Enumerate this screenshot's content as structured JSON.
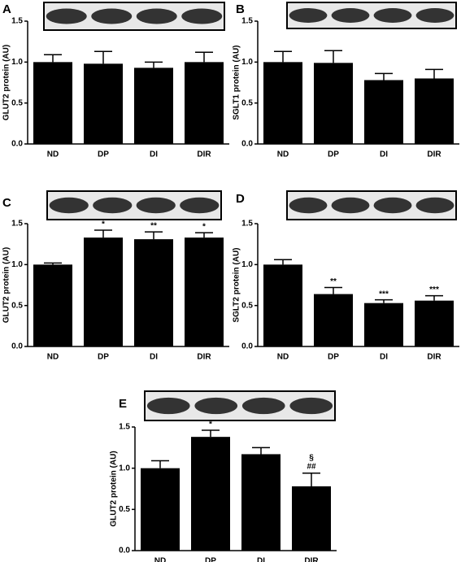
{
  "chart_data": [
    {
      "type": "bar",
      "label": "A",
      "ylabel": "GLUT2 protein (AU)",
      "categories": [
        "ND",
        "DP",
        "DI",
        "DIR"
      ],
      "values": [
        1.0,
        0.98,
        0.93,
        1.0
      ],
      "errors": [
        0.09,
        0.15,
        0.07,
        0.12
      ],
      "annotations": [
        null,
        null,
        null,
        null
      ],
      "color": "#000000",
      "ylim": [
        0,
        1.5
      ],
      "yticks": [
        {
          "value": 0,
          "label": "0.0"
        },
        {
          "value": 0.5,
          "label": "0.5"
        },
        {
          "value": 1,
          "label": "1.0"
        },
        {
          "value": 1.5,
          "label": "1.5"
        }
      ]
    },
    {
      "type": "bar",
      "label": "B",
      "ylabel": "SGLT1 protein (AU)",
      "categories": [
        "ND",
        "DP",
        "DI",
        "DIR"
      ],
      "values": [
        1.0,
        0.99,
        0.78,
        0.8
      ],
      "errors": [
        0.13,
        0.15,
        0.08,
        0.11
      ],
      "annotations": [
        null,
        null,
        null,
        null
      ],
      "color": "#000000",
      "ylim": [
        0,
        1.5
      ],
      "yticks": [
        {
          "value": 0,
          "label": "0.0"
        },
        {
          "value": 0.5,
          "label": "0.5"
        },
        {
          "value": 1,
          "label": "1.0"
        },
        {
          "value": 1.5,
          "label": "1.5"
        }
      ]
    },
    {
      "type": "bar",
      "label": "C",
      "ylabel": "GLUT2 protein (AU)",
      "categories": [
        "ND",
        "DP",
        "DI",
        "DIR"
      ],
      "values": [
        1.0,
        1.33,
        1.31,
        1.33
      ],
      "errors": [
        0.02,
        0.09,
        0.09,
        0.06
      ],
      "annotations": [
        null,
        "*",
        "**",
        "*"
      ],
      "color": "#000000",
      "ylim": [
        0,
        1.5
      ],
      "yticks": [
        {
          "value": 0,
          "label": "0.0"
        },
        {
          "value": 0.5,
          "label": "0.5"
        },
        {
          "value": 1,
          "label": "1.0"
        },
        {
          "value": 1.5,
          "label": "1.5"
        }
      ]
    },
    {
      "type": "bar",
      "label": "D",
      "ylabel": "SGLT2 protein (AU)",
      "categories": [
        "ND",
        "DP",
        "DI",
        "DIR"
      ],
      "values": [
        1.0,
        0.64,
        0.53,
        0.56
      ],
      "errors": [
        0.06,
        0.08,
        0.04,
        0.06
      ],
      "annotations": [
        null,
        "**",
        "***",
        "***"
      ],
      "color": "#000000",
      "ylim": [
        0,
        1.5
      ],
      "yticks": [
        {
          "value": 0,
          "label": "0.0"
        },
        {
          "value": 0.5,
          "label": "0.5"
        },
        {
          "value": 1,
          "label": "1.0"
        },
        {
          "value": 1.5,
          "label": "1.5"
        }
      ]
    },
    {
      "type": "bar",
      "label": "E",
      "ylabel": "GLUT2 protein (AU)",
      "categories": [
        "ND",
        "DP",
        "DI",
        "DIR"
      ],
      "values": [
        1.0,
        1.38,
        1.17,
        0.78
      ],
      "errors": [
        0.09,
        0.08,
        0.08,
        0.16
      ],
      "annotations": [
        null,
        "*",
        null,
        [
          "§",
          "##"
        ]
      ],
      "color": "#000000",
      "ylim": [
        0,
        1.5
      ],
      "yticks": [
        {
          "value": 0,
          "label": "0.0"
        },
        {
          "value": 0.5,
          "label": "0.5"
        },
        {
          "value": 1,
          "label": "1.0"
        },
        {
          "value": 1.5,
          "label": "1.5"
        }
      ]
    }
  ]
}
